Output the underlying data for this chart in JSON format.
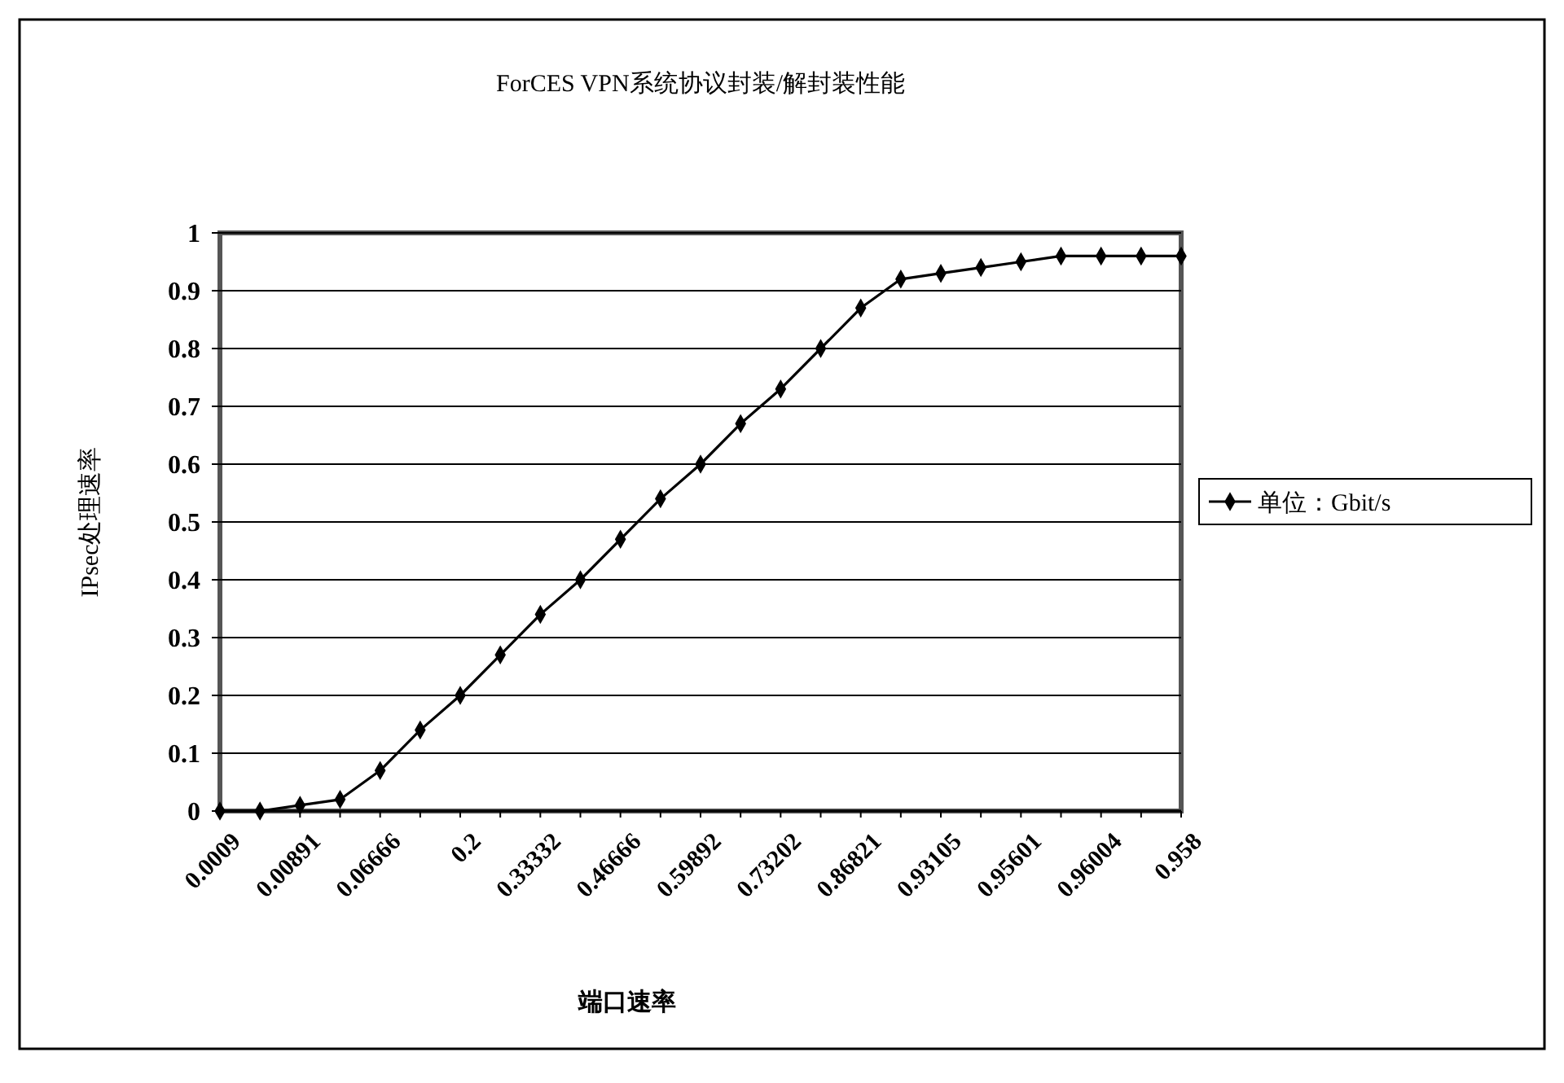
{
  "chart_data": {
    "type": "line",
    "title": "ForCES VPN系统协议封装/解封装性能",
    "xlabel": "端口速率",
    "ylabel": "IPsec处理速率",
    "categories": [
      "0.0009",
      null,
      "0.00891",
      null,
      "0.06666",
      null,
      "0.2",
      null,
      "0.33332",
      null,
      "0.46666",
      null,
      "0.59892",
      null,
      "0.73202",
      null,
      "0.86821",
      null,
      "0.93105",
      null,
      "0.95601",
      null,
      "0.96004",
      null,
      "0.958"
    ],
    "series": [
      {
        "name": "单位：Gbit/s",
        "color": "#000000",
        "values": [
          0,
          0,
          0.01,
          0.02,
          0.07,
          0.14,
          0.2,
          0.27,
          0.34,
          0.4,
          0.47,
          0.54,
          0.6,
          0.67,
          0.73,
          0.8,
          0.87,
          0.92,
          0.93,
          0.94,
          0.95,
          0.96,
          0.96,
          0.96,
          0.96
        ]
      }
    ],
    "ylim": [
      0,
      1
    ],
    "yticks": [
      0,
      0.1,
      0.2,
      0.3,
      0.4,
      0.5,
      0.6,
      0.7,
      0.8,
      0.9,
      1
    ],
    "grid": "y",
    "legend": "right",
    "marker": "diamond",
    "line_style": "solid"
  }
}
